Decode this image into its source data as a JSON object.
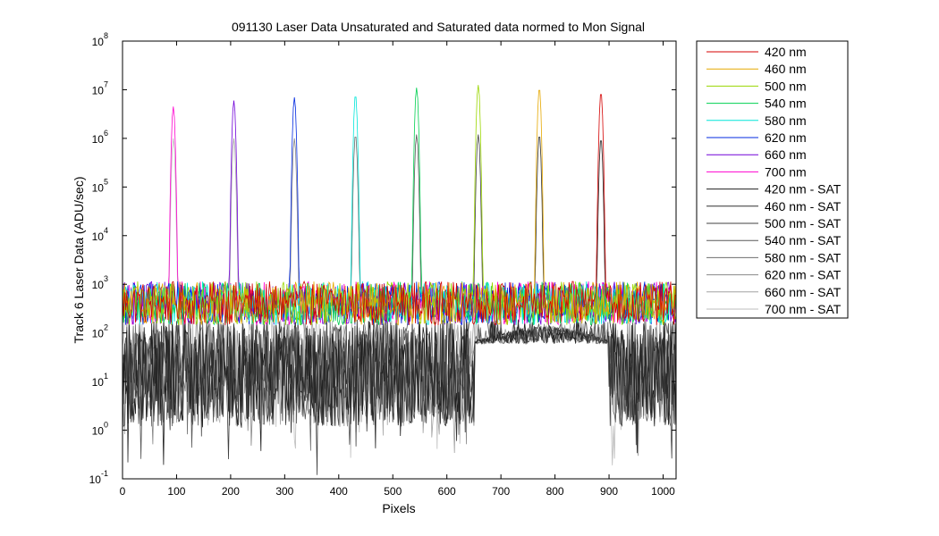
{
  "chart_data": {
    "type": "line",
    "title": "091130 Laser Data  Unsaturated and Saturated data normed to Mon Signal",
    "xlabel": "Pixels",
    "ylabel": "Track 6 Laser Data (ADU/sec)",
    "xlim": [
      0,
      1024
    ],
    "ylim": [
      0.1,
      100000000
    ],
    "yscale": "log",
    "grid": false,
    "legend_position": "outside-right",
    "xticks": [
      0,
      100,
      200,
      300,
      400,
      500,
      600,
      700,
      800,
      900,
      1000
    ],
    "yticks": [
      {
        "base": "10",
        "exp": "-1",
        "value": 0.1
      },
      {
        "base": "10",
        "exp": "0",
        "value": 1
      },
      {
        "base": "10",
        "exp": "1",
        "value": 10
      },
      {
        "base": "10",
        "exp": "2",
        "value": 100
      },
      {
        "base": "10",
        "exp": "3",
        "value": 1000
      },
      {
        "base": "10",
        "exp": "4",
        "value": 10000
      },
      {
        "base": "10",
        "exp": "5",
        "value": 100000
      },
      {
        "base": "10",
        "exp": "6",
        "value": 1000000
      },
      {
        "base": "10",
        "exp": "7",
        "value": 10000000
      },
      {
        "base": "10",
        "exp": "8",
        "value": 100000000
      }
    ],
    "series": [
      {
        "name": "420 nm",
        "color": "#d40000",
        "peak_x": 885,
        "peak_y": 9000000,
        "noise_level": 500
      },
      {
        "name": "460 nm",
        "color": "#e6a800",
        "peak_x": 771,
        "peak_y": 11000000,
        "noise_level": 500
      },
      {
        "name": "500 nm",
        "color": "#9ad600",
        "peak_x": 658,
        "peak_y": 12500000,
        "noise_level": 500
      },
      {
        "name": "540 nm",
        "color": "#00d050",
        "peak_x": 544,
        "peak_y": 11000000,
        "noise_level": 500
      },
      {
        "name": "580 nm",
        "color": "#00e6d8",
        "peak_x": 431,
        "peak_y": 8000000,
        "noise_level": 500
      },
      {
        "name": "620 nm",
        "color": "#0028e0",
        "peak_x": 318,
        "peak_y": 7000000,
        "noise_level": 500
      },
      {
        "name": "660 nm",
        "color": "#7000d8",
        "peak_x": 206,
        "peak_y": 6000000,
        "noise_level": 500
      },
      {
        "name": "700 nm",
        "color": "#ff00d0",
        "peak_x": 94,
        "peak_y": 4500000,
        "noise_level": 500
      },
      {
        "name": "420 nm - SAT",
        "color": "#202020",
        "peak_x": 885,
        "peak_y": 1000000,
        "noise_level": 25
      },
      {
        "name": "460 nm - SAT",
        "color": "#303030",
        "peak_x": 771,
        "peak_y": 1200000,
        "noise_level": 25
      },
      {
        "name": "500 nm - SAT",
        "color": "#404040",
        "peak_x": 658,
        "peak_y": 1200000,
        "noise_level": 25
      },
      {
        "name": "540 nm - SAT",
        "color": "#585858",
        "peak_x": 544,
        "peak_y": 1200000,
        "noise_level": 25
      },
      {
        "name": "580 nm - SAT",
        "color": "#6e6e6e",
        "peak_x": 431,
        "peak_y": 1200000,
        "noise_level": 25
      },
      {
        "name": "620 nm - SAT",
        "color": "#888888",
        "peak_x": 318,
        "peak_y": 1000000,
        "noise_level": 25
      },
      {
        "name": "660 nm - SAT",
        "color": "#a2a2a2",
        "peak_x": 206,
        "peak_y": 1000000,
        "noise_level": 25
      },
      {
        "name": "700 nm - SAT",
        "color": "#bcbcbc",
        "peak_x": 94,
        "peak_y": 1000000,
        "noise_level": 25
      }
    ]
  }
}
